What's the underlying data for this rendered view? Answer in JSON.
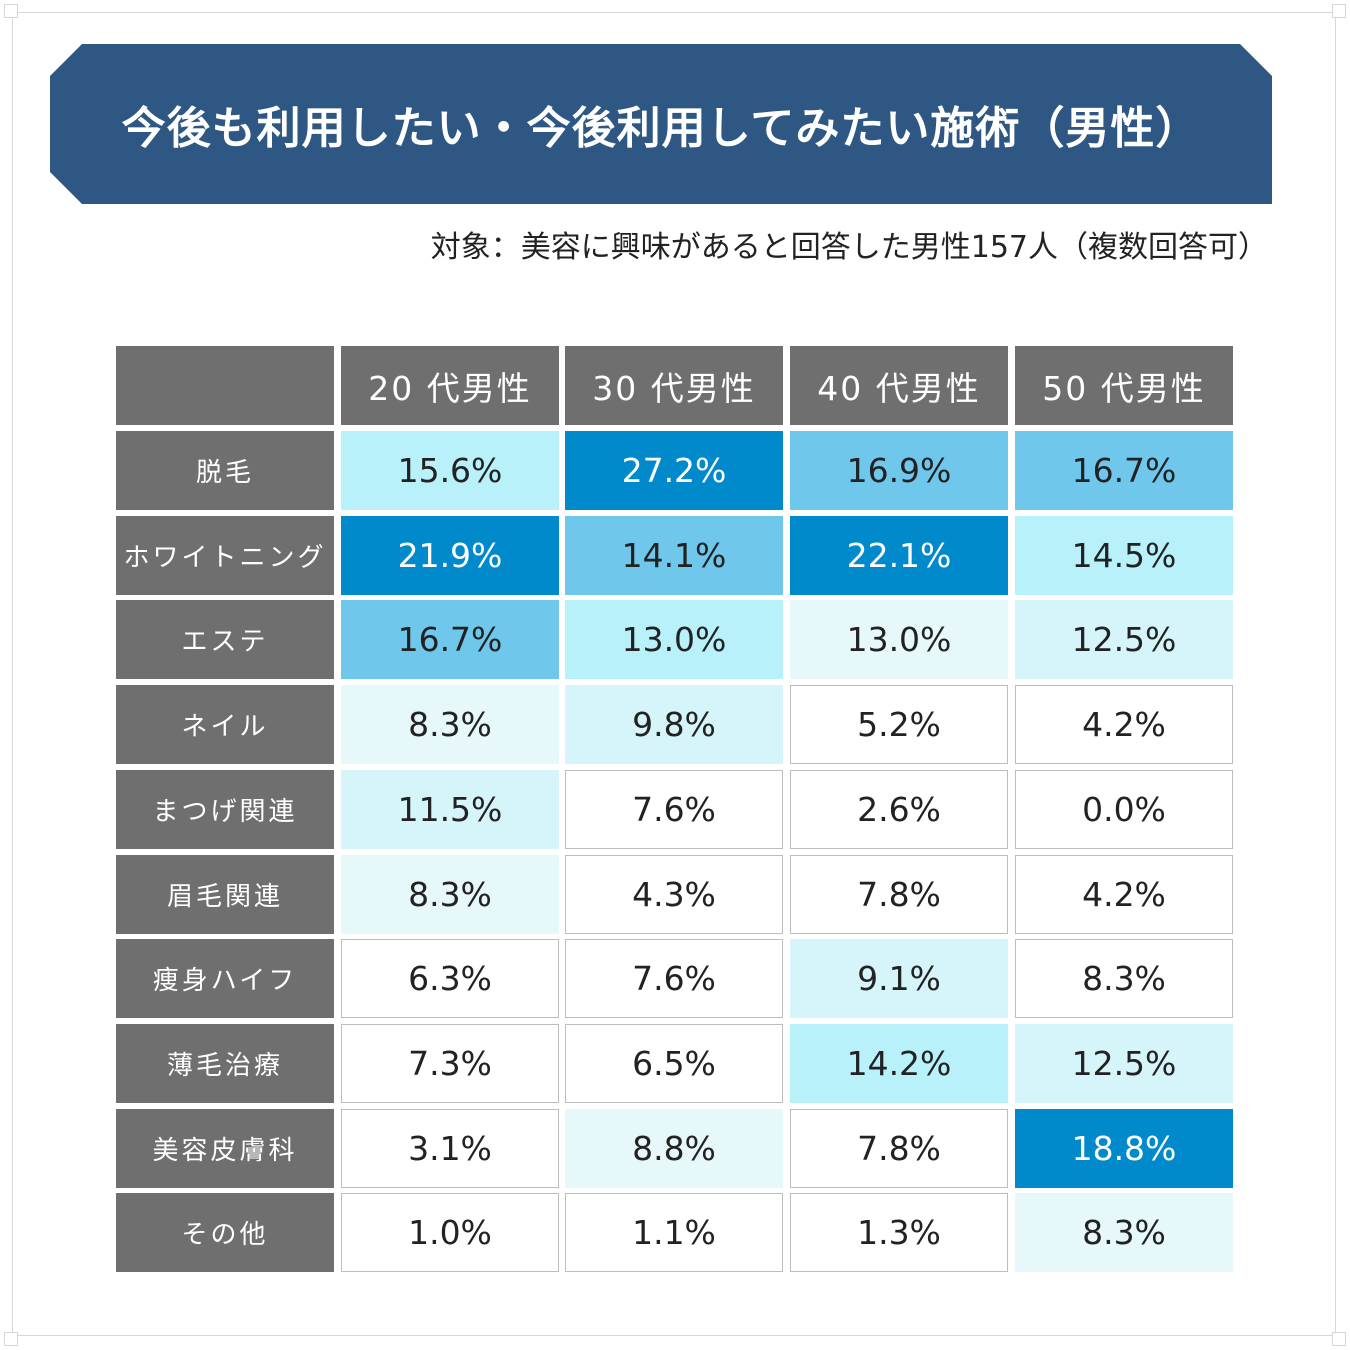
{
  "title": "今後も利用したい・今後利用してみたい施術（男性）",
  "subtitle": "対象：美容に興味があると回答した男性157人（複数回答可）",
  "colors": {
    "banner": "#2e5883",
    "header_bg": "#6f6f6f",
    "level_5": "#0089cb",
    "level_4": "#70c7ec",
    "level_3": "#b9f1fb",
    "level_2": "#d6f5fb",
    "level_1": "#e7f8fb",
    "level_0": "#ffffff"
  },
  "chart_data": {
    "type": "table",
    "columns": [
      "20 代男性",
      "30 代男性",
      "40 代男性",
      "50 代男性"
    ],
    "rows": [
      {
        "label": "脱毛",
        "values": [
          "15.6%",
          "27.2%",
          "16.9%",
          "16.7%"
        ],
        "levels": [
          3,
          5,
          4,
          4
        ]
      },
      {
        "label": "ホワイトニング",
        "values": [
          "21.9%",
          "14.1%",
          "22.1%",
          "14.5%"
        ],
        "levels": [
          5,
          4,
          5,
          3
        ]
      },
      {
        "label": "エステ",
        "values": [
          "16.7%",
          "13.0%",
          "13.0%",
          "12.5%"
        ],
        "levels": [
          4,
          3,
          1,
          2
        ]
      },
      {
        "label": "ネイル",
        "values": [
          "8.3%",
          "9.8%",
          "5.2%",
          "4.2%"
        ],
        "levels": [
          1,
          2,
          0,
          0
        ]
      },
      {
        "label": "まつげ関連",
        "values": [
          "11.5%",
          "7.6%",
          "2.6%",
          "0.0%"
        ],
        "levels": [
          2,
          0,
          0,
          0
        ]
      },
      {
        "label": "眉毛関連",
        "values": [
          "8.3%",
          "4.3%",
          "7.8%",
          "4.2%"
        ],
        "levels": [
          1,
          0,
          0,
          0
        ]
      },
      {
        "label": "痩身ハイフ",
        "values": [
          "6.3%",
          "7.6%",
          "9.1%",
          "8.3%"
        ],
        "levels": [
          0,
          0,
          2,
          0
        ]
      },
      {
        "label": "薄毛治療",
        "values": [
          "7.3%",
          "6.5%",
          "14.2%",
          "12.5%"
        ],
        "levels": [
          0,
          0,
          3,
          2
        ]
      },
      {
        "label": "美容皮膚科",
        "values": [
          "3.1%",
          "8.8%",
          "7.8%",
          "18.8%"
        ],
        "levels": [
          0,
          1,
          0,
          5
        ]
      },
      {
        "label": "その他",
        "values": [
          "1.0%",
          "1.1%",
          "1.3%",
          "8.3%"
        ],
        "levels": [
          0,
          0,
          0,
          1
        ]
      }
    ]
  }
}
